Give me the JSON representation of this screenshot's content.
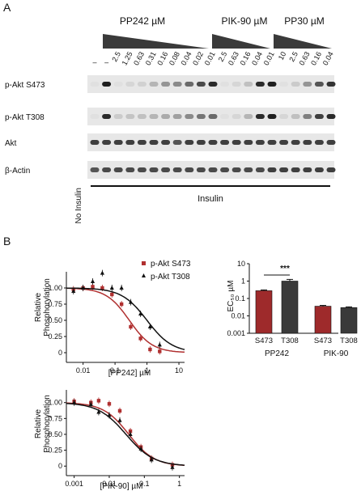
{
  "panel_a": {
    "label": "A",
    "group_headers": [
      {
        "id": "pp242",
        "label": "PP242 µM"
      },
      {
        "id": "pik90",
        "label": "PIK-90 µM"
      },
      {
        "id": "pp30",
        "label": "PP30 µM"
      }
    ],
    "lane_labels": [
      "–",
      "–",
      "2.5",
      "1.25",
      "0.63",
      "0.31",
      "0.16",
      "0.08",
      "0.04",
      "0.02",
      "0.01",
      "2.5",
      "0.63",
      "0.16",
      "0.04",
      "0.01",
      "10",
      "2.5",
      "0.63",
      "0.16",
      "0.04"
    ],
    "row_labels": [
      "p-Akt S473",
      "p-Akt T308",
      "Akt",
      "β-Actin"
    ],
    "no_insulin_label": "No Insulin",
    "insulin_label": "Insulin",
    "band_intensity": {
      "p-Akt S473": [
        0.05,
        0.95,
        0.05,
        0.1,
        0.12,
        0.25,
        0.4,
        0.45,
        0.6,
        0.75,
        0.9,
        0.05,
        0.1,
        0.2,
        0.9,
        0.95,
        0.05,
        0.15,
        0.4,
        0.7,
        0.85
      ],
      "p-Akt T308": [
        0.05,
        0.9,
        0.15,
        0.18,
        0.2,
        0.25,
        0.3,
        0.35,
        0.45,
        0.55,
        0.6,
        0.05,
        0.1,
        0.25,
        0.9,
        0.95,
        0.1,
        0.2,
        0.5,
        0.8,
        0.9
      ],
      "Akt": [
        0.8,
        0.8,
        0.8,
        0.8,
        0.8,
        0.8,
        0.8,
        0.7,
        0.8,
        0.8,
        0.8,
        0.8,
        0.8,
        0.8,
        0.8,
        0.8,
        0.8,
        0.8,
        0.8,
        0.8,
        0.8
      ],
      "β-Actin": [
        0.7,
        0.75,
        0.75,
        0.75,
        0.75,
        0.75,
        0.75,
        0.75,
        0.75,
        0.75,
        0.75,
        0.75,
        0.75,
        0.75,
        0.75,
        0.8,
        0.8,
        0.8,
        0.8,
        0.8,
        0.8
      ]
    }
  },
  "panel_b": {
    "label": "B",
    "legend": [
      {
        "label": "p-Akt S473",
        "marker": "square",
        "color": "#b03030"
      },
      {
        "label": "p-Akt T308",
        "marker": "triangle",
        "color": "#111111"
      }
    ],
    "ylabel_line1": "Relative",
    "ylabel_line2": "Phosphorylation",
    "curve1_xlabel": "[PP242] µM",
    "curve2_xlabel": "[PIK-90] µM",
    "bar_ylabel": "EC₅₀ µM",
    "significance": "***"
  },
  "chart_data": [
    {
      "type": "scatter",
      "id": "pp242_curve",
      "xlabel": "[PP242] µM",
      "ylabel": "Relative Phosphorylation",
      "xscale": "log",
      "xlim": [
        0.003,
        15
      ],
      "ylim": [
        -0.15,
        1.25
      ],
      "xticks": [
        0.01,
        0.1,
        1,
        10
      ],
      "xtick_labels": [
        "0.01",
        "0.1",
        "1",
        "10"
      ],
      "yticks": [
        0,
        0.25,
        0.5,
        0.75,
        1.0
      ],
      "ytick_labels": [
        "0",
        "0.25",
        "0.50",
        "0.75",
        "1.00"
      ],
      "series": [
        {
          "name": "p-Akt S473",
          "color": "#b03030",
          "marker": "square",
          "ec50": 0.28,
          "hill": 1.2,
          "x": [
            0.005,
            0.01,
            0.02,
            0.04,
            0.08,
            0.16,
            0.31,
            0.63,
            1.25,
            2.5
          ],
          "y": [
            0.98,
            1.0,
            1.02,
            1.0,
            0.9,
            0.75,
            0.4,
            0.22,
            0.05,
            0.02
          ]
        },
        {
          "name": "p-Akt T308",
          "color": "#111111",
          "marker": "triangle",
          "ec50": 1.0,
          "hill": 1.1,
          "x": [
            0.005,
            0.01,
            0.02,
            0.04,
            0.08,
            0.16,
            0.31,
            0.63,
            1.25,
            2.5
          ],
          "y": [
            0.95,
            1.0,
            1.1,
            1.23,
            1.0,
            1.0,
            0.78,
            0.6,
            0.4,
            0.12
          ]
        }
      ]
    },
    {
      "type": "scatter",
      "id": "pik90_curve",
      "xlabel": "[PIK-90] µM",
      "ylabel": "Relative Phosphorylation",
      "xscale": "log",
      "xlim": [
        0.0006,
        1.4
      ],
      "ylim": [
        -0.15,
        1.2
      ],
      "xticks": [
        0.001,
        0.01,
        0.1,
        1
      ],
      "xtick_labels": [
        "0.001",
        "0.01",
        "0.1",
        "1"
      ],
      "yticks": [
        0,
        0.25,
        0.5,
        0.75,
        1.0
      ],
      "ytick_labels": [
        "0",
        "0.25",
        "0.50",
        "0.75",
        "1.00"
      ],
      "series": [
        {
          "name": "p-Akt S473",
          "color": "#b03030",
          "marker": "square",
          "ec50": 0.036,
          "hill": 1.2,
          "x": [
            0.001,
            0.003,
            0.005,
            0.01,
            0.02,
            0.04,
            0.08,
            0.16,
            0.63
          ],
          "y": [
            1.02,
            1.0,
            1.03,
            0.98,
            0.87,
            0.55,
            0.3,
            0.12,
            0.02
          ]
        },
        {
          "name": "p-Akt T308",
          "color": "#111111",
          "marker": "triangle",
          "ec50": 0.03,
          "hill": 1.1,
          "x": [
            0.001,
            0.003,
            0.005,
            0.01,
            0.02,
            0.04,
            0.08,
            0.16,
            0.63
          ],
          "y": [
            1.0,
            0.97,
            0.85,
            0.8,
            0.72,
            0.5,
            0.27,
            0.1,
            -0.02
          ]
        }
      ]
    },
    {
      "type": "bar",
      "id": "ec50_bars",
      "ylabel": "EC₅₀ µM",
      "yscale": "log",
      "ylim": [
        0.001,
        10
      ],
      "yticks": [
        0.001,
        0.01,
        0.1,
        1,
        10
      ],
      "ytick_labels": [
        "0.001",
        "0.01",
        "0.1",
        "1",
        "10"
      ],
      "categories": [
        "S473",
        "T308",
        "S473",
        "T308"
      ],
      "groups": [
        "PP242",
        "PIK-90"
      ],
      "values": [
        0.28,
        1.0,
        0.036,
        0.03
      ],
      "errors": [
        0.03,
        0.25,
        0.004,
        0.003
      ],
      "colors": [
        "#9e2a2b",
        "#3a3a3a",
        "#9e2a2b",
        "#3a3a3a"
      ]
    }
  ]
}
